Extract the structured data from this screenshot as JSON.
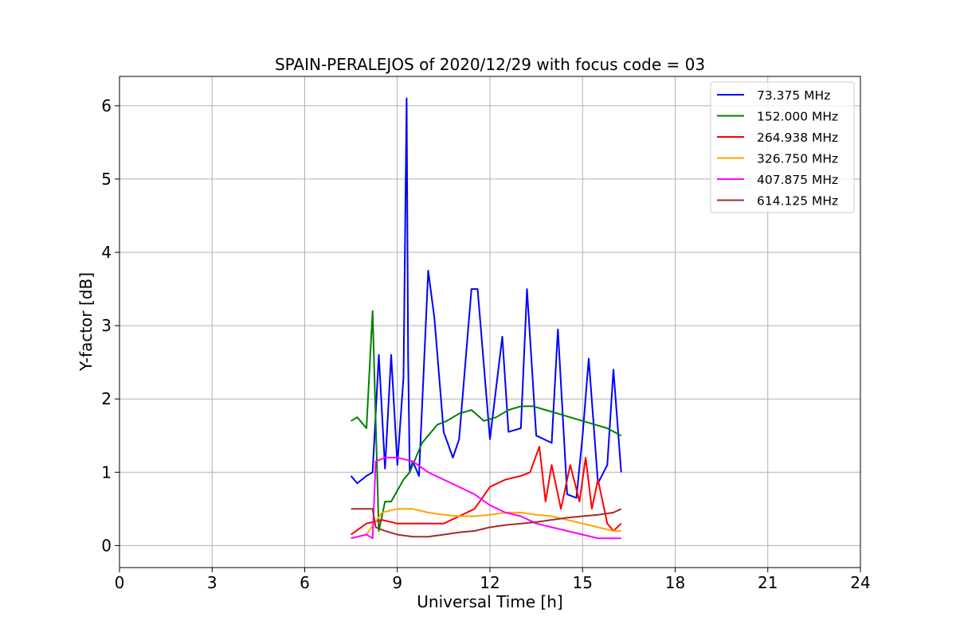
{
  "chart_data": {
    "type": "line",
    "title": "SPAIN-PERALEJOS of 2020/12/29 with focus code = 03",
    "xlabel": "Universal Time [h]",
    "ylabel": "Y-factor [dB]",
    "xlim": [
      0,
      24
    ],
    "ylim": [
      -0.3,
      6.4
    ],
    "xticks": [
      0,
      3,
      6,
      9,
      12,
      15,
      18,
      21,
      24
    ],
    "yticks": [
      0,
      1,
      2,
      3,
      4,
      5,
      6
    ],
    "xtick_labels": [
      "0",
      "3",
      "6",
      "9",
      "12",
      "15",
      "18",
      "21",
      "24"
    ],
    "ytick_labels": [
      "0",
      "1",
      "2",
      "3",
      "4",
      "5",
      "6"
    ],
    "grid": true,
    "legend_position": "top-right",
    "series": [
      {
        "name": " 73.375 MHz",
        "color": "#0000ff",
        "x": [
          7.5,
          7.7,
          8.0,
          8.2,
          8.4,
          8.6,
          8.8,
          9.0,
          9.2,
          9.3,
          9.35,
          9.4,
          9.5,
          9.7,
          10.0,
          10.2,
          10.5,
          10.8,
          11.0,
          11.4,
          11.6,
          12.0,
          12.4,
          12.6,
          13.0,
          13.2,
          13.5,
          14.0,
          14.2,
          14.5,
          14.8,
          15.0,
          15.2,
          15.5,
          15.8,
          16.0,
          16.25
        ],
        "y": [
          0.95,
          0.85,
          0.95,
          1.0,
          2.6,
          1.05,
          2.6,
          1.1,
          2.3,
          6.1,
          2.55,
          1.0,
          1.15,
          0.95,
          3.75,
          3.1,
          1.55,
          1.2,
          1.45,
          3.5,
          3.5,
          1.45,
          2.85,
          1.55,
          1.6,
          3.5,
          1.5,
          1.4,
          2.95,
          0.7,
          0.65,
          1.5,
          2.55,
          0.85,
          1.1,
          2.4,
          1.0
        ]
      },
      {
        "name": "152.000 MHz",
        "color": "#008000",
        "x": [
          7.5,
          7.7,
          8.0,
          8.2,
          8.4,
          8.6,
          8.8,
          9.0,
          9.2,
          9.4,
          9.6,
          9.8,
          10.0,
          10.3,
          10.6,
          11.0,
          11.4,
          11.8,
          12.2,
          12.6,
          13.0,
          13.4,
          13.8,
          14.2,
          14.6,
          15.0,
          15.4,
          15.8,
          16.25
        ],
        "y": [
          1.7,
          1.75,
          1.6,
          3.2,
          0.2,
          0.6,
          0.6,
          0.75,
          0.9,
          1.0,
          1.2,
          1.4,
          1.5,
          1.65,
          1.7,
          1.8,
          1.85,
          1.7,
          1.75,
          1.85,
          1.9,
          1.9,
          1.85,
          1.8,
          1.75,
          1.7,
          1.65,
          1.6,
          1.5
        ]
      },
      {
        "name": "264.938 MHz",
        "color": "#ff0000",
        "x": [
          7.5,
          8.0,
          8.5,
          9.0,
          9.5,
          10.0,
          10.5,
          11.0,
          11.5,
          12.0,
          12.5,
          13.0,
          13.3,
          13.6,
          13.8,
          14.0,
          14.3,
          14.6,
          14.9,
          15.1,
          15.3,
          15.5,
          15.8,
          16.0,
          16.25
        ],
        "y": [
          0.15,
          0.3,
          0.35,
          0.3,
          0.3,
          0.3,
          0.3,
          0.4,
          0.5,
          0.8,
          0.9,
          0.95,
          1.0,
          1.35,
          0.6,
          1.1,
          0.5,
          1.1,
          0.6,
          1.2,
          0.5,
          0.9,
          0.3,
          0.2,
          0.3
        ]
      },
      {
        "name": "326.750 MHz",
        "color": "#ffa500",
        "x": [
          7.5,
          8.0,
          8.5,
          9.0,
          9.5,
          10.0,
          10.5,
          11.0,
          11.5,
          12.0,
          12.5,
          13.0,
          13.5,
          14.0,
          14.5,
          15.0,
          15.5,
          16.0,
          16.25
        ],
        "y": [
          0.1,
          0.15,
          0.45,
          0.5,
          0.5,
          0.45,
          0.42,
          0.4,
          0.4,
          0.42,
          0.45,
          0.45,
          0.42,
          0.4,
          0.35,
          0.3,
          0.25,
          0.2,
          0.2
        ]
      },
      {
        "name": "407.875 MHz",
        "color": "#ff00ff",
        "x": [
          7.5,
          8.0,
          8.2,
          8.3,
          8.6,
          9.0,
          9.5,
          10.0,
          10.5,
          11.0,
          11.5,
          12.0,
          12.5,
          13.0,
          13.5,
          14.0,
          14.5,
          15.0,
          15.5,
          16.0,
          16.25
        ],
        "y": [
          0.1,
          0.15,
          0.1,
          1.15,
          1.2,
          1.2,
          1.15,
          1.0,
          0.9,
          0.8,
          0.7,
          0.55,
          0.45,
          0.4,
          0.3,
          0.25,
          0.2,
          0.15,
          0.1,
          0.1,
          0.1
        ]
      },
      {
        "name": "614.125 MHz",
        "color": "#a52a2a",
        "x": [
          7.5,
          8.0,
          8.2,
          8.3,
          8.6,
          9.0,
          9.5,
          10.0,
          10.5,
          11.0,
          11.5,
          12.0,
          12.5,
          13.0,
          13.5,
          14.0,
          14.5,
          15.0,
          15.5,
          16.0,
          16.25
        ],
        "y": [
          0.5,
          0.5,
          0.5,
          0.25,
          0.2,
          0.15,
          0.12,
          0.12,
          0.15,
          0.18,
          0.2,
          0.25,
          0.28,
          0.3,
          0.32,
          0.35,
          0.38,
          0.4,
          0.42,
          0.45,
          0.5
        ]
      }
    ]
  }
}
